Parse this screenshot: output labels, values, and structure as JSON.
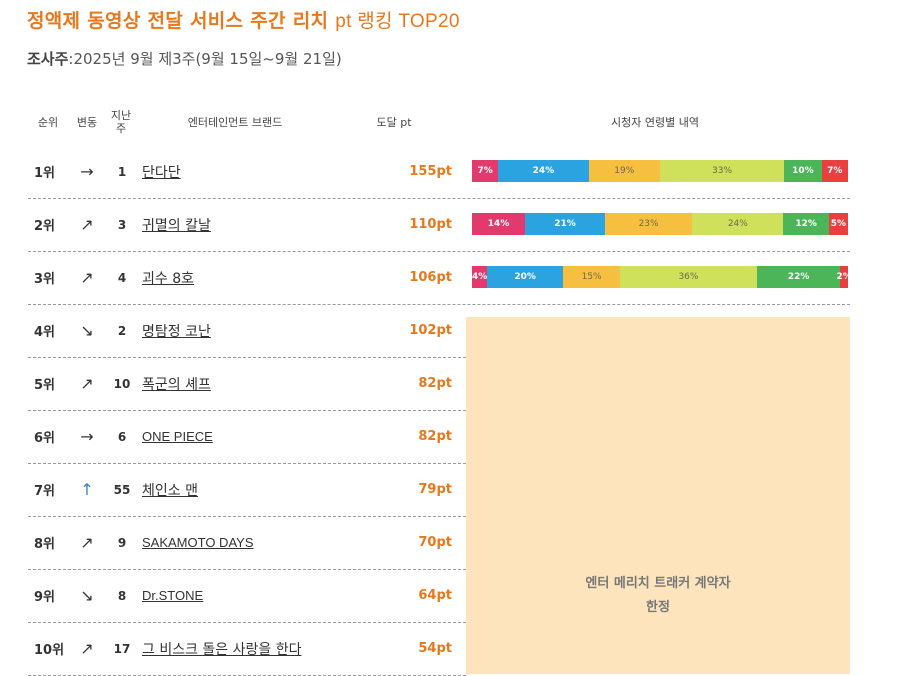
{
  "title": "정액제 동영상 전달 서비스 주간 리치",
  "title_suffix": "pt 랭킹 TOP20",
  "survey": {
    "label": "조사주",
    "value": ":2025년 9월 제3주(9월 15일~9월 21일)"
  },
  "headers": {
    "rank": "순위",
    "change": "변동",
    "weeks": "지난\n주",
    "brand": "엔터테인먼트 브랜드",
    "reach": "도달 pt",
    "breakdown": "시청자 연령별 내역"
  },
  "age_colors": [
    "#e23a6c",
    "#2aa3e0",
    "#f7bf40",
    "#cfe05a",
    "#4cb558",
    "#e83f3f"
  ],
  "rows": [
    {
      "rank": "1위",
      "arrow": "→",
      "trend": "flat",
      "last_week": "1",
      "brand": "단다단",
      "pt": "155pt",
      "breakdown": [
        "7%",
        "24%",
        "19%",
        "33%",
        "10%",
        "7%"
      ],
      "share": [
        7,
        24,
        19,
        33,
        10,
        7
      ]
    },
    {
      "rank": "2위",
      "arrow": "↗",
      "trend": "up",
      "last_week": "3",
      "brand": "귀멸의 칼날",
      "pt": "110pt",
      "breakdown": [
        "14%",
        "21%",
        "23%",
        "24%",
        "12%",
        "5%"
      ],
      "share": [
        14,
        21,
        23,
        24,
        12,
        5
      ]
    },
    {
      "rank": "3위",
      "arrow": "↗",
      "trend": "up",
      "last_week": "4",
      "brand": "괴수 8호",
      "pt": "106pt",
      "breakdown": [
        "4%",
        "20%",
        "15%",
        "36%",
        "22%",
        "2%"
      ],
      "share": [
        4,
        20,
        15,
        36,
        22,
        2
      ]
    },
    {
      "rank": "4위",
      "arrow": "↘",
      "trend": "down",
      "last_week": "2",
      "brand": "명탐정 코난",
      "pt": "102pt"
    },
    {
      "rank": "5위",
      "arrow": "↗",
      "trend": "up",
      "last_week": "10",
      "brand": "폭군의 셰프",
      "pt": "82pt"
    },
    {
      "rank": "6위",
      "arrow": "→",
      "trend": "flat",
      "last_week": "6",
      "brand": "ONE PIECE",
      "pt": "82pt"
    },
    {
      "rank": "7위",
      "arrow": "↑",
      "trend": "up-strong",
      "last_week": "55",
      "brand": "체인소 맨",
      "pt": "79pt"
    },
    {
      "rank": "8위",
      "arrow": "↗",
      "trend": "up",
      "last_week": "9",
      "brand": "SAKAMOTO DAYS",
      "pt": "70pt"
    },
    {
      "rank": "9위",
      "arrow": "↘",
      "trend": "down",
      "last_week": "8",
      "brand": "Dr.STONE",
      "pt": "64pt"
    },
    {
      "rank": "10위",
      "arrow": "↗",
      "trend": "up",
      "last_week": "17",
      "brand": "그 비스크 돌은 사랑을 한다",
      "pt": "54pt"
    }
  ],
  "locked_message": [
    "엔터 메리치 트래커 계약자",
    "한정"
  ]
}
